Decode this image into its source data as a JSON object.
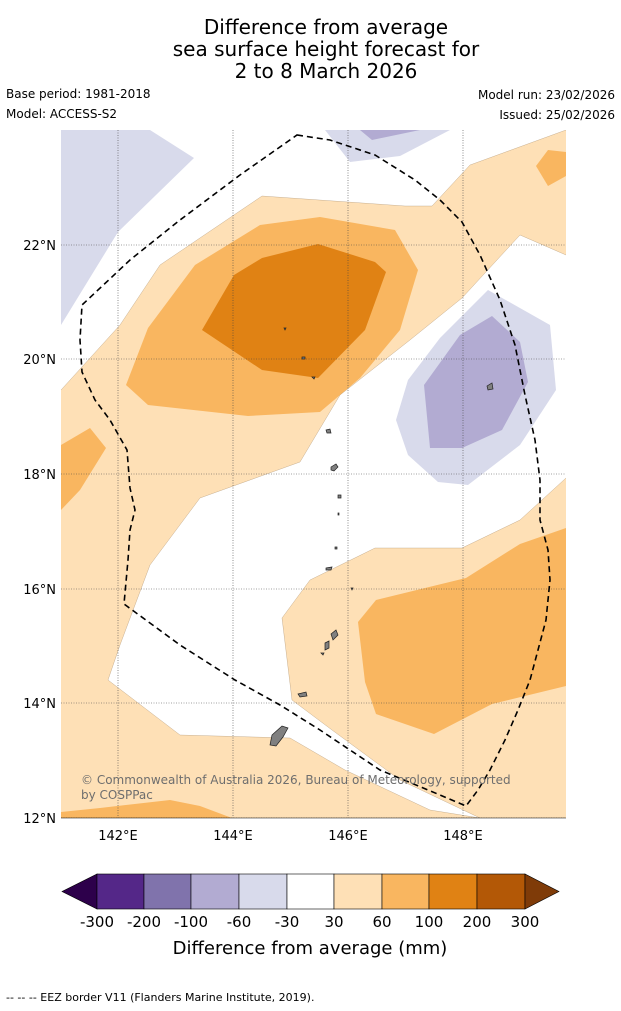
{
  "title": {
    "line1": "Difference from average",
    "line2": "sea surface height forecast for",
    "line3": "2 to 8 March 2026"
  },
  "meta": {
    "base_period": "Base period: 1981-2018",
    "model": "Model: ACCESS-S2",
    "model_run": "Model run: 23/02/2026",
    "issued": "Issued: 25/02/2026"
  },
  "map": {
    "lon_range": [
      141.0,
      149.8
    ],
    "lat_range": [
      12.0,
      24.0
    ],
    "lon_ticks": [
      "142°E",
      "144°E",
      "146°E",
      "148°E"
    ],
    "lat_ticks": [
      "22°N",
      "20°N",
      "18°N",
      "16°N",
      "14°N",
      "12°N"
    ],
    "copyright_line1": "© Commonwealth of Australia 2026, Bureau of Meteorology, supported",
    "copyright_line2": "by COSPPac"
  },
  "colors": {
    "m300": "#2d004b",
    "m200": "#542788",
    "m100": "#8073ac",
    "m60": "#b2abd2",
    "m30": "#d8daeb",
    "zero": "#ffffff",
    "p30": "#fee0b6",
    "p60": "#f9b660",
    "p100": "#e08214",
    "p200": "#b35806",
    "p300": "#7f3b08",
    "land": "#808080"
  },
  "colorbar": {
    "labels": [
      "-300",
      "-200",
      "-100",
      "-60",
      "-30",
      "30",
      "60",
      "100",
      "200",
      "300"
    ],
    "title": "Difference from average (mm)"
  },
  "footer": {
    "eez_note": "--  --  -- EEZ border V11 (Flanders Marine Institute, 2019)."
  }
}
